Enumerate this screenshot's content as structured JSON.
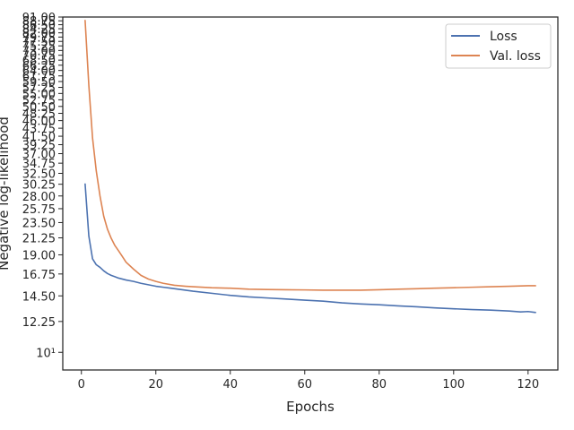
{
  "chart_data": {
    "type": "line",
    "title": "",
    "xlabel": "Epochs",
    "ylabel": "Negative log-likelihood",
    "xlim": [
      -5,
      128
    ],
    "ylim": [
      8.9,
      91
    ],
    "y_scale": "log",
    "grid": false,
    "legend_position": "top-right",
    "x_ticks": [
      0,
      20,
      40,
      60,
      80,
      100,
      120
    ],
    "x_tick_labels": [
      "0",
      "20",
      "40",
      "60",
      "80",
      "100",
      "120"
    ],
    "y_ticks": [
      10,
      12.25,
      14.5,
      16.75,
      19,
      21.25,
      23.5,
      25.75,
      28,
      30.25,
      32.5,
      34.75,
      37,
      39.25,
      41.5,
      43.75,
      46,
      48.25,
      50.5,
      52.75,
      55,
      57.25,
      59.5,
      61.75,
      64,
      66.25,
      68.5,
      70.75,
      73,
      75.25,
      77.5,
      79.75,
      82,
      84.25,
      86.5,
      88.75,
      91
    ],
    "y_tick_labels": [
      "10¹",
      "12.25",
      "14.50",
      "16.75",
      "19.00",
      "21.25",
      "23.50",
      "25.75",
      "28.00",
      "30.25",
      "32.50",
      "34.75",
      "37.00",
      "39.25",
      "41.50",
      "43.75",
      "46.00",
      "48.25",
      "50.50",
      "52.75",
      "55.00",
      "57.25",
      "59.50",
      "61.75",
      "64.00",
      "66.25",
      "68.50",
      "70.75",
      "73.00",
      "75.25",
      "77.50",
      "79.75",
      "82.00",
      "84.25",
      "86.50",
      "88.75",
      "91.00"
    ],
    "series": [
      {
        "name": "Loss",
        "color": "#4c72b0",
        "points": [
          [
            1,
            30.3
          ],
          [
            2,
            21.5
          ],
          [
            3,
            18.5
          ],
          [
            4,
            17.8
          ],
          [
            5,
            17.5
          ],
          [
            6,
            17.1
          ],
          [
            7,
            16.8
          ],
          [
            8,
            16.6
          ],
          [
            9,
            16.45
          ],
          [
            10,
            16.3
          ],
          [
            12,
            16.1
          ],
          [
            14,
            15.95
          ],
          [
            16,
            15.75
          ],
          [
            18,
            15.6
          ],
          [
            20,
            15.45
          ],
          [
            22,
            15.35
          ],
          [
            24,
            15.25
          ],
          [
            26,
            15.15
          ],
          [
            28,
            15.05
          ],
          [
            30,
            14.95
          ],
          [
            35,
            14.75
          ],
          [
            40,
            14.55
          ],
          [
            45,
            14.4
          ],
          [
            50,
            14.3
          ],
          [
            55,
            14.2
          ],
          [
            60,
            14.1
          ],
          [
            65,
            14.0
          ],
          [
            70,
            13.85
          ],
          [
            75,
            13.75
          ],
          [
            80,
            13.68
          ],
          [
            85,
            13.58
          ],
          [
            90,
            13.5
          ],
          [
            95,
            13.4
          ],
          [
            100,
            13.32
          ],
          [
            105,
            13.25
          ],
          [
            110,
            13.2
          ],
          [
            115,
            13.12
          ],
          [
            118,
            13.05
          ],
          [
            120,
            13.08
          ],
          [
            122,
            13.0
          ]
        ]
      },
      {
        "name": "Val. loss",
        "color": "#dd8452",
        "points": [
          [
            1,
            89
          ],
          [
            2,
            58
          ],
          [
            3,
            41
          ],
          [
            4,
            33
          ],
          [
            5,
            28
          ],
          [
            6,
            24.5
          ],
          [
            7,
            22.5
          ],
          [
            8,
            21.2
          ],
          [
            9,
            20.2
          ],
          [
            10,
            19.5
          ],
          [
            11,
            18.8
          ],
          [
            12,
            18.1
          ],
          [
            14,
            17.3
          ],
          [
            16,
            16.6
          ],
          [
            18,
            16.2
          ],
          [
            20,
            15.95
          ],
          [
            22,
            15.75
          ],
          [
            25,
            15.55
          ],
          [
            28,
            15.45
          ],
          [
            30,
            15.4
          ],
          [
            35,
            15.3
          ],
          [
            40,
            15.25
          ],
          [
            45,
            15.15
          ],
          [
            50,
            15.12
          ],
          [
            55,
            15.1
          ],
          [
            60,
            15.08
          ],
          [
            65,
            15.05
          ],
          [
            70,
            15.05
          ],
          [
            75,
            15.05
          ],
          [
            80,
            15.1
          ],
          [
            85,
            15.15
          ],
          [
            90,
            15.2
          ],
          [
            95,
            15.25
          ],
          [
            100,
            15.3
          ],
          [
            105,
            15.35
          ],
          [
            110,
            15.4
          ],
          [
            115,
            15.45
          ],
          [
            120,
            15.5
          ],
          [
            122,
            15.5
          ]
        ]
      }
    ]
  }
}
